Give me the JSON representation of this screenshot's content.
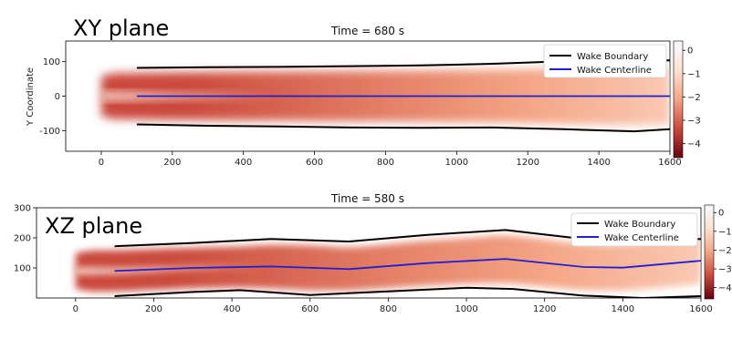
{
  "chart_data": [
    {
      "type": "heatmap",
      "plane_label": "XY plane",
      "title": "Time = 680 s",
      "xlabel": "",
      "ylabel": "Y Coordinate",
      "xlim": [
        -100,
        1600
      ],
      "ylim": [
        -160,
        160
      ],
      "x_ticks": [
        0,
        200,
        400,
        600,
        800,
        1000,
        1200,
        1400,
        1600
      ],
      "y_ticks": [
        100,
        0,
        -100
      ],
      "colorbar": {
        "ticks": [
          0,
          -1,
          -2,
          -3,
          -4
        ],
        "range": [
          -4.6,
          0.4
        ],
        "colors": [
          "#67000d",
          "#cb4a3c",
          "#f4a585",
          "#fde1d2",
          "#f7fbff"
        ]
      },
      "legend": {
        "placement": "top-right",
        "entries": [
          "Wake Boundary",
          "Wake Centerline"
        ]
      },
      "series": [
        {
          "name": "Wake Boundary",
          "color": "#000000",
          "x": [
            100,
            300,
            500,
            700,
            900,
            1100,
            1300,
            1500,
            1600
          ],
          "y": [
            82,
            84,
            85,
            87,
            89,
            94,
            101,
            103,
            104
          ]
        },
        {
          "name": "Wake Boundary",
          "color": "#000000",
          "x": [
            100,
            300,
            500,
            700,
            900,
            1100,
            1300,
            1500,
            1600
          ],
          "y": [
            -82,
            -86,
            -88,
            -91,
            -92,
            -91,
            -96,
            -102,
            -96
          ]
        },
        {
          "name": "Wake Centerline",
          "color": "#1f1fd0",
          "x": [
            100,
            1600
          ],
          "y": [
            0,
            0
          ]
        }
      ]
    },
    {
      "type": "heatmap",
      "plane_label": "XZ plane",
      "title": "Time = 580 s",
      "xlabel": "",
      "ylabel": "",
      "xlim": [
        -100,
        1600
      ],
      "ylim": [
        0,
        300
      ],
      "x_ticks": [
        0,
        200,
        400,
        600,
        800,
        1000,
        1200,
        1400,
        1600
      ],
      "y_ticks": [
        300,
        200,
        100
      ],
      "colorbar": {
        "ticks": [
          0,
          -1,
          -2,
          -3,
          -4
        ],
        "range": [
          -4.6,
          0.4
        ],
        "colors": [
          "#67000d",
          "#cb4a3c",
          "#f4a585",
          "#fde1d2",
          "#f7fbff"
        ]
      },
      "legend": {
        "placement": "top-right",
        "entries": [
          "Wake Boundary",
          "Wake Centerline"
        ]
      },
      "series": [
        {
          "name": "Wake Boundary",
          "color": "#000000",
          "x": [
            100,
            300,
            500,
            700,
            900,
            1100,
            1300,
            1400,
            1600
          ],
          "y": [
            172,
            183,
            196,
            188,
            210,
            226,
            196,
            186,
            196
          ]
        },
        {
          "name": "Wake Boundary",
          "color": "#000000",
          "x": [
            100,
            300,
            420,
            600,
            800,
            1000,
            1120,
            1300,
            1450,
            1600
          ],
          "y": [
            6,
            20,
            26,
            10,
            22,
            34,
            30,
            8,
            0,
            6
          ]
        },
        {
          "name": "Wake Centerline",
          "color": "#1f1fd0",
          "x": [
            100,
            300,
            500,
            700,
            900,
            1100,
            1300,
            1400,
            1600
          ],
          "y": [
            90,
            100,
            105,
            96,
            116,
            130,
            103,
            101,
            124
          ]
        }
      ]
    }
  ]
}
